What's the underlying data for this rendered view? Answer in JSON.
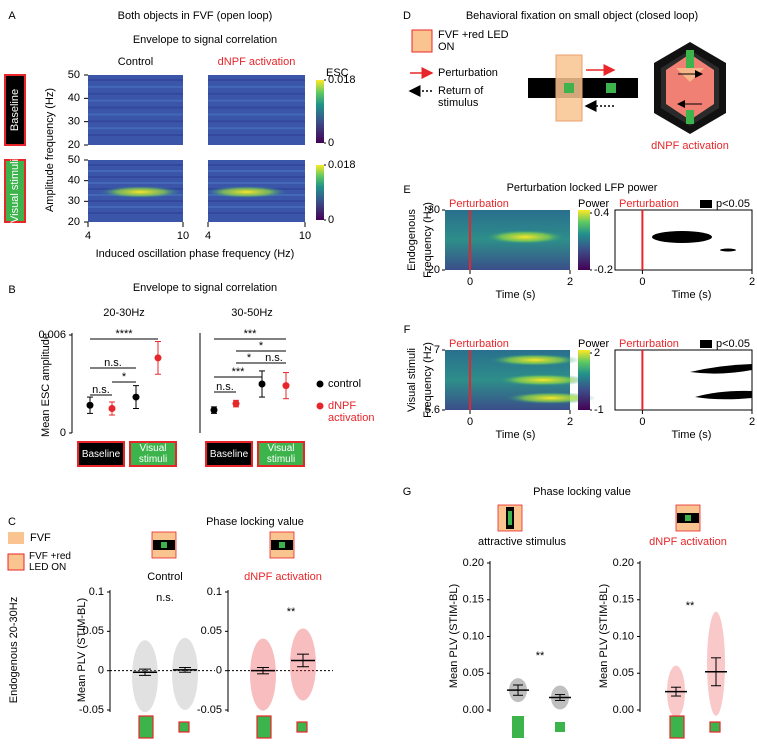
{
  "panel_a": {
    "letter": "A",
    "title": "Both objects in FVF (open loop)",
    "subtitle": "Envelope to signal correlation",
    "columns": [
      "Control",
      "dNPF activation"
    ],
    "rows": [
      "Baseline",
      "Visual stimuli"
    ],
    "y_label": "Amplitude frequency (Hz)",
    "x_label": "Induced oscillation phase frequency (Hz)",
    "ylim": [
      20,
      50
    ],
    "yticks": [
      20,
      30,
      40,
      50
    ],
    "xticks": [
      4,
      10
    ],
    "colorbar_label": "ESC",
    "colorbar_ticks": [
      0,
      0.018
    ]
  },
  "panel_b": {
    "letter": "B",
    "title": "Envelope to signal correlation",
    "y_label": "Mean ESC amplitude",
    "ylim": [
      0,
      0.006
    ],
    "yticks": [
      0,
      0.006
    ],
    "groups": [
      "Baseline",
      "Visual stimuli"
    ],
    "legend": [
      {
        "name": "control",
        "color": "#000000"
      },
      {
        "name": "dNPF activation",
        "color": "#e8262a"
      }
    ],
    "plots": [
      {
        "title": "20-30Hz",
        "series": [
          {
            "values": [
              0.0017,
              0.0022
            ],
            "errors": [
              0.0005,
              0.0007
            ]
          },
          {
            "values": [
              0.0015,
              0.0046
            ],
            "errors": [
              0.0004,
              0.001
            ]
          }
        ],
        "significance": [
          "****",
          "n.s.",
          "n.s.",
          "*"
        ]
      },
      {
        "title": "30-50Hz",
        "series": [
          {
            "values": [
              0.0014,
              0.003
            ],
            "errors": [
              0.0002,
              0.0008
            ]
          },
          {
            "values": [
              0.0018,
              0.0029
            ],
            "errors": [
              0.0002,
              0.0008
            ]
          }
        ],
        "significance": [
          "***",
          "*",
          "*",
          "n.s.",
          "***",
          "n.s."
        ]
      }
    ]
  },
  "panel_c": {
    "letter": "C",
    "title": "Phase locking value",
    "legend": [
      "FVF",
      "FVF +red LED ON"
    ],
    "row_label": "Endogenous 20-30Hz",
    "y_label": "Mean PLV (STIM-BL)",
    "ylim": [
      -0.05,
      0.1
    ],
    "yticks": [
      -0.05,
      0,
      0.05,
      0.1
    ],
    "plots": [
      {
        "title": "Control",
        "color": "#9a9a9a",
        "values": [
          -0.002,
          0.001
        ],
        "errors": [
          0.004,
          0.003
        ],
        "significance": "n.s."
      },
      {
        "title": "dNPF activation",
        "color": "#e8262a",
        "values": [
          0.0,
          0.013
        ],
        "errors": [
          0.004,
          0.008
        ],
        "significance": "**"
      }
    ]
  },
  "panel_d": {
    "letter": "D",
    "title": "Behavioral fixation on small object (closed loop)",
    "legend": [
      "FVF +red LED ON",
      "Perturbation",
      "Return of stimulus"
    ],
    "caption": "dNPF activation"
  },
  "panel_e": {
    "letter": "E",
    "title": "Perturbation locked LFP power",
    "row_label": "Endogenous",
    "y_label": "Frequency (Hz)",
    "ylim": [
      20,
      30
    ],
    "yticks": [
      20,
      30
    ],
    "x_label": "Time (s)",
    "xlim": [
      -0.5,
      2
    ],
    "xticks": [
      0,
      2
    ],
    "event_label": "Perturbation",
    "colorbar_label": "Power",
    "colorbar_ticks": [
      -0.2,
      0.4
    ],
    "significance_label": "p<0.05"
  },
  "panel_f": {
    "letter": "F",
    "row_label": "Visual stimuli",
    "y_label": "Frequency (Hz)",
    "ylim": [
      5.6,
      7
    ],
    "yticks": [
      5.6,
      7
    ],
    "x_label": "Time (s)",
    "xlim": [
      -0.5,
      2
    ],
    "xticks": [
      0,
      2
    ],
    "event_label": "Perturbation",
    "colorbar_label": "Power",
    "colorbar_ticks": [
      -1,
      2
    ],
    "significance_label": "p<0.05"
  },
  "panel_g": {
    "letter": "G",
    "title": "Phase locking value",
    "y_label": "Mean PLV (STIM-BL)",
    "ylim": [
      0,
      0.2
    ],
    "yticks": [
      {
        "value": 0,
        "label": "0.00"
      },
      {
        "value": 0.05,
        "label": "0.05"
      },
      {
        "value": 0.1,
        "label": "0.10"
      },
      {
        "value": 0.15,
        "label": "0.15"
      },
      {
        "value": 0.2,
        "label": "0.20"
      }
    ],
    "plots": [
      {
        "title": "attractive stimulus",
        "color": "#000000",
        "values": [
          0.027,
          0.017
        ],
        "errors": [
          0.007,
          0.004
        ],
        "significance": "**"
      },
      {
        "title": "dNPF activation",
        "color": "#e8262a",
        "values": [
          0.025,
          0.052
        ],
        "errors": [
          0.006,
          0.019
        ],
        "significance": "**"
      }
    ]
  }
}
